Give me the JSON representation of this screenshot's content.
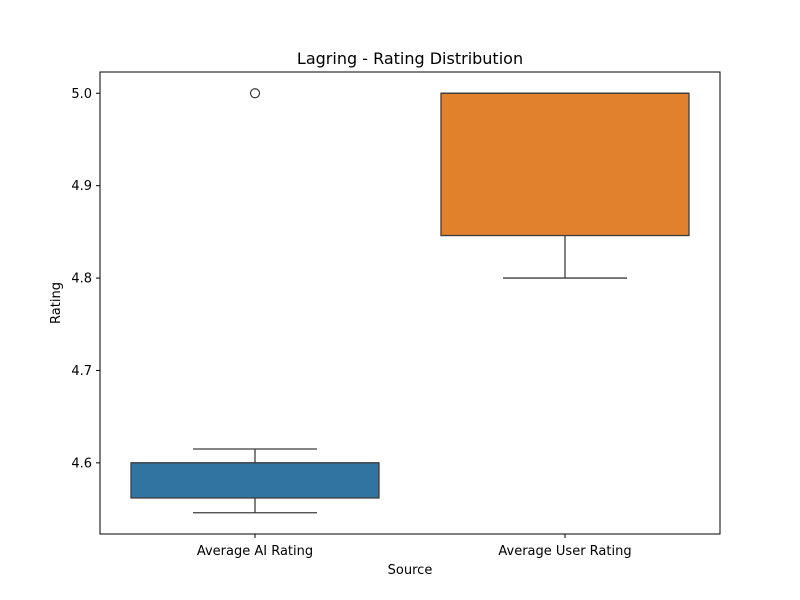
{
  "chart_data": {
    "type": "box",
    "title": "Lagring - Rating Distribution",
    "xlabel": "Source",
    "ylabel": "Rating",
    "ylim": [
      4.523,
      5.023
    ],
    "yticks": [
      "4.6",
      "4.7",
      "4.8",
      "4.9",
      "5.0"
    ],
    "grid": false,
    "categories": [
      "Average AI Rating",
      "Average User Rating"
    ],
    "series": [
      {
        "category": "Average AI Rating",
        "color": "#3274a1",
        "whisker_low": 4.546,
        "q1": 4.562,
        "median": 4.6,
        "q3": 4.6,
        "whisker_high": 4.615,
        "outliers": [
          5.0
        ]
      },
      {
        "category": "Average User Rating",
        "color": "#e1812c",
        "whisker_low": 4.8,
        "q1": 4.846,
        "median": 5.0,
        "q3": 5.0,
        "whisker_high": 5.0,
        "outliers": []
      }
    ]
  }
}
